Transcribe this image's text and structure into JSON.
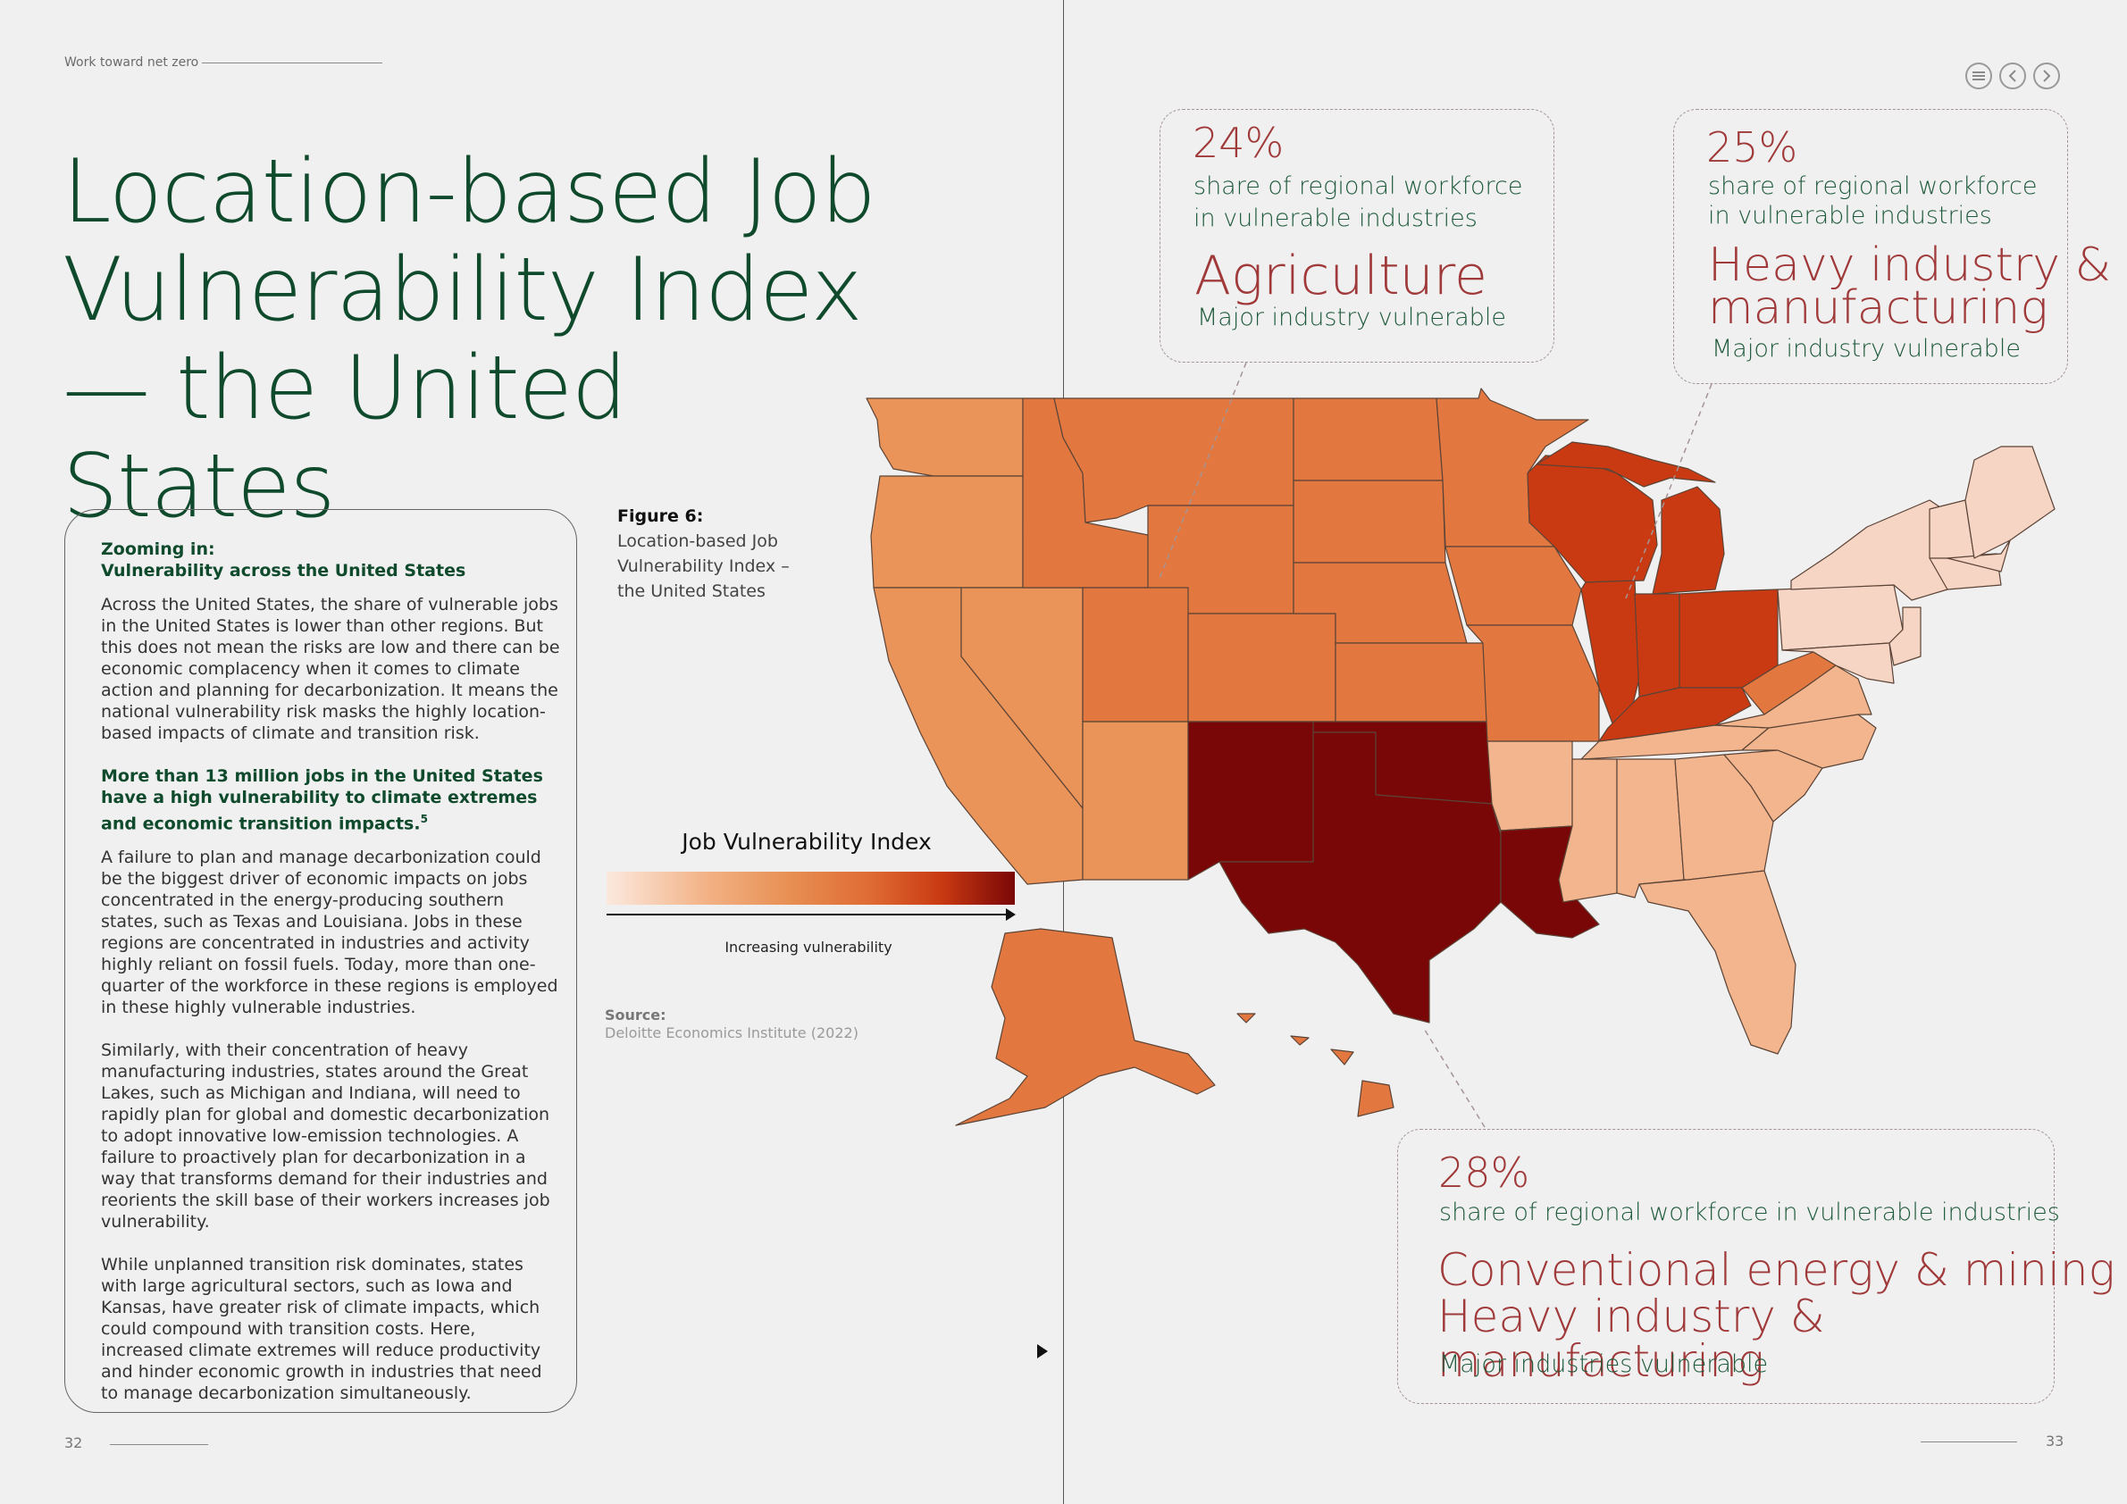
{
  "header": {
    "running_title": "Work toward net zero"
  },
  "title": "Location-based Job Vulnerability Index— the United States",
  "nav": {
    "menu_icon": "menu-icon",
    "prev_icon": "chevron-left-icon",
    "next_icon": "chevron-right-icon"
  },
  "sidebar": {
    "heading_line1": "Zooming in:",
    "heading_line2": "Vulnerability across the United States",
    "para1": "Across the United States, the share of vulnerable jobs in the United States is lower than other regions. But this does not mean the risks are low and there can be economic complacency when it comes to climate action and planning for decarbonization. It means the national vulnerability risk masks the highly location-based impacts of climate and transition risk.",
    "highlight": "More than 13 million jobs in the United States have a high vulnerability to climate extremes and economic transition impacts.",
    "highlight_ref": "5",
    "para2": "A failure to plan and manage decarbonization could be the biggest driver of economic impacts on jobs concentrated in the energy-producing southern states, such as Texas and Louisiana. Jobs in these regions are concentrated in industries and activity highly reliant on fossil fuels. Today, more than one-quarter of the workforce in these regions is employed in these highly vulnerable industries.",
    "para3": "Similarly, with their concentration of heavy manufacturing industries, states around the Great Lakes, such as Michigan and Indiana, will need to rapidly plan for global and domestic decarbonization to adopt innovative low-emission technologies. A failure to proactively plan for decarbonization in a way that transforms demand for their industries and reorients the skill base of their workers increases job vulnerability.",
    "para4": "While unplanned transition risk dominates, states with large agricultural sectors, such as Iowa and Kansas, have greater risk of climate impacts, which could compound with transition costs. Here, increased climate extremes will reduce productivity and hinder economic growth in industries that need to manage decarbonization simultaneously."
  },
  "figure": {
    "label": "Figure 6:",
    "caption": "Location-based Job Vulnerability Index – the United States"
  },
  "legend": {
    "title": "Job Vulnerability Index",
    "direction_label": "Increasing vulnerability",
    "scale_colors": [
      "#fbe9de",
      "#f2b184",
      "#e78f53",
      "#df6a33",
      "#c93a12",
      "#7a0707"
    ]
  },
  "source": {
    "label": "Source:",
    "text": "Deloitte Economics Institute (2022)"
  },
  "map_colors": {
    "level1": "#f6d5c5",
    "level2": "#f2b58d",
    "level3": "#ea9459",
    "level4": "#e27840",
    "level5": "#c93a12",
    "level6": "#7a0707"
  },
  "callouts": {
    "agriculture": {
      "percent": "24%",
      "share_line1": "share of regional workforce",
      "share_line2": "in vulnerable industries",
      "industry": "Agriculture",
      "major": "Major industry vulnerable"
    },
    "heavy": {
      "percent": "25%",
      "share_line1": "share of regional workforce",
      "share_line2": "in vulnerable industries",
      "industry_line1": "Heavy industry &",
      "industry_line2": "manufacturing",
      "major": "Major industry vulnerable"
    },
    "energy": {
      "percent": "28%",
      "share": "share of regional workforce in vulnerable industries",
      "industry_line1": "Conventional energy & mining",
      "industry_line2": "Heavy industry & manufacturing",
      "major": "Major industries vulnerable"
    }
  },
  "footer": {
    "page_left": "32",
    "page_right": "33"
  }
}
